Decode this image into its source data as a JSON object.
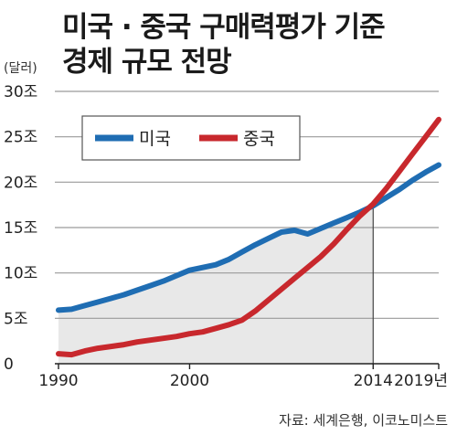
{
  "title_line1": "미국 · 중국 구매력평가 기준",
  "title_line2": "경제 규모 전망",
  "unit": "(달러)",
  "source": "자료: 세계은행, 이코노미스트",
  "colors": {
    "us": "#1f6db3",
    "china": "#c8282d",
    "area": "#e8e8e8",
    "grid": "#9a9a9a"
  },
  "chart_data": {
    "type": "line",
    "title": "미국 · 중국 구매력평가 기준 경제 규모 전망",
    "xlabel": "",
    "ylabel": "(달러)",
    "ylim": [
      0,
      30
    ],
    "xlim": [
      1990,
      2019
    ],
    "yticks": [
      {
        "value": 0,
        "label": "0"
      },
      {
        "value": 5,
        "label": "5조"
      },
      {
        "value": 10,
        "label": "10조"
      },
      {
        "value": 15,
        "label": "15조"
      },
      {
        "value": 20,
        "label": "20조"
      },
      {
        "value": 25,
        "label": "25조"
      },
      {
        "value": 30,
        "label": "30조"
      }
    ],
    "xticks": [
      {
        "value": 1990,
        "label": "1990"
      },
      {
        "value": 2000,
        "label": "2000"
      },
      {
        "value": 2014,
        "label": "2014"
      },
      {
        "value": 2019,
        "label": "2019년"
      }
    ],
    "projection_start": 2014,
    "legend_position": "top-left",
    "series": [
      {
        "name": "미국",
        "x": [
          1990,
          1991,
          1992,
          1993,
          1994,
          1995,
          1996,
          1997,
          1998,
          1999,
          2000,
          2001,
          2002,
          2003,
          2004,
          2005,
          2006,
          2007,
          2008,
          2009,
          2010,
          2011,
          2012,
          2013,
          2014,
          2015,
          2016,
          2017,
          2018,
          2019
        ],
        "values": [
          5.9,
          6.0,
          6.4,
          6.8,
          7.2,
          7.6,
          8.1,
          8.6,
          9.1,
          9.7,
          10.3,
          10.6,
          10.9,
          11.5,
          12.3,
          13.1,
          13.8,
          14.5,
          14.7,
          14.3,
          14.9,
          15.5,
          16.1,
          16.7,
          17.4,
          18.3,
          19.2,
          20.2,
          21.1,
          21.9
        ]
      },
      {
        "name": "중국",
        "x": [
          1990,
          1991,
          1992,
          1993,
          1994,
          1995,
          1996,
          1997,
          1998,
          1999,
          2000,
          2001,
          2002,
          2003,
          2004,
          2005,
          2006,
          2007,
          2008,
          2009,
          2010,
          2011,
          2012,
          2013,
          2014,
          2015,
          2016,
          2017,
          2018,
          2019
        ],
        "values": [
          1.1,
          1.0,
          1.4,
          1.7,
          1.9,
          2.1,
          2.4,
          2.6,
          2.8,
          3.0,
          3.3,
          3.5,
          3.9,
          4.3,
          4.8,
          5.8,
          7.0,
          8.2,
          9.4,
          10.6,
          11.8,
          13.2,
          14.8,
          16.3,
          17.6,
          19.3,
          21.2,
          23.1,
          25.0,
          26.9
        ]
      }
    ]
  }
}
